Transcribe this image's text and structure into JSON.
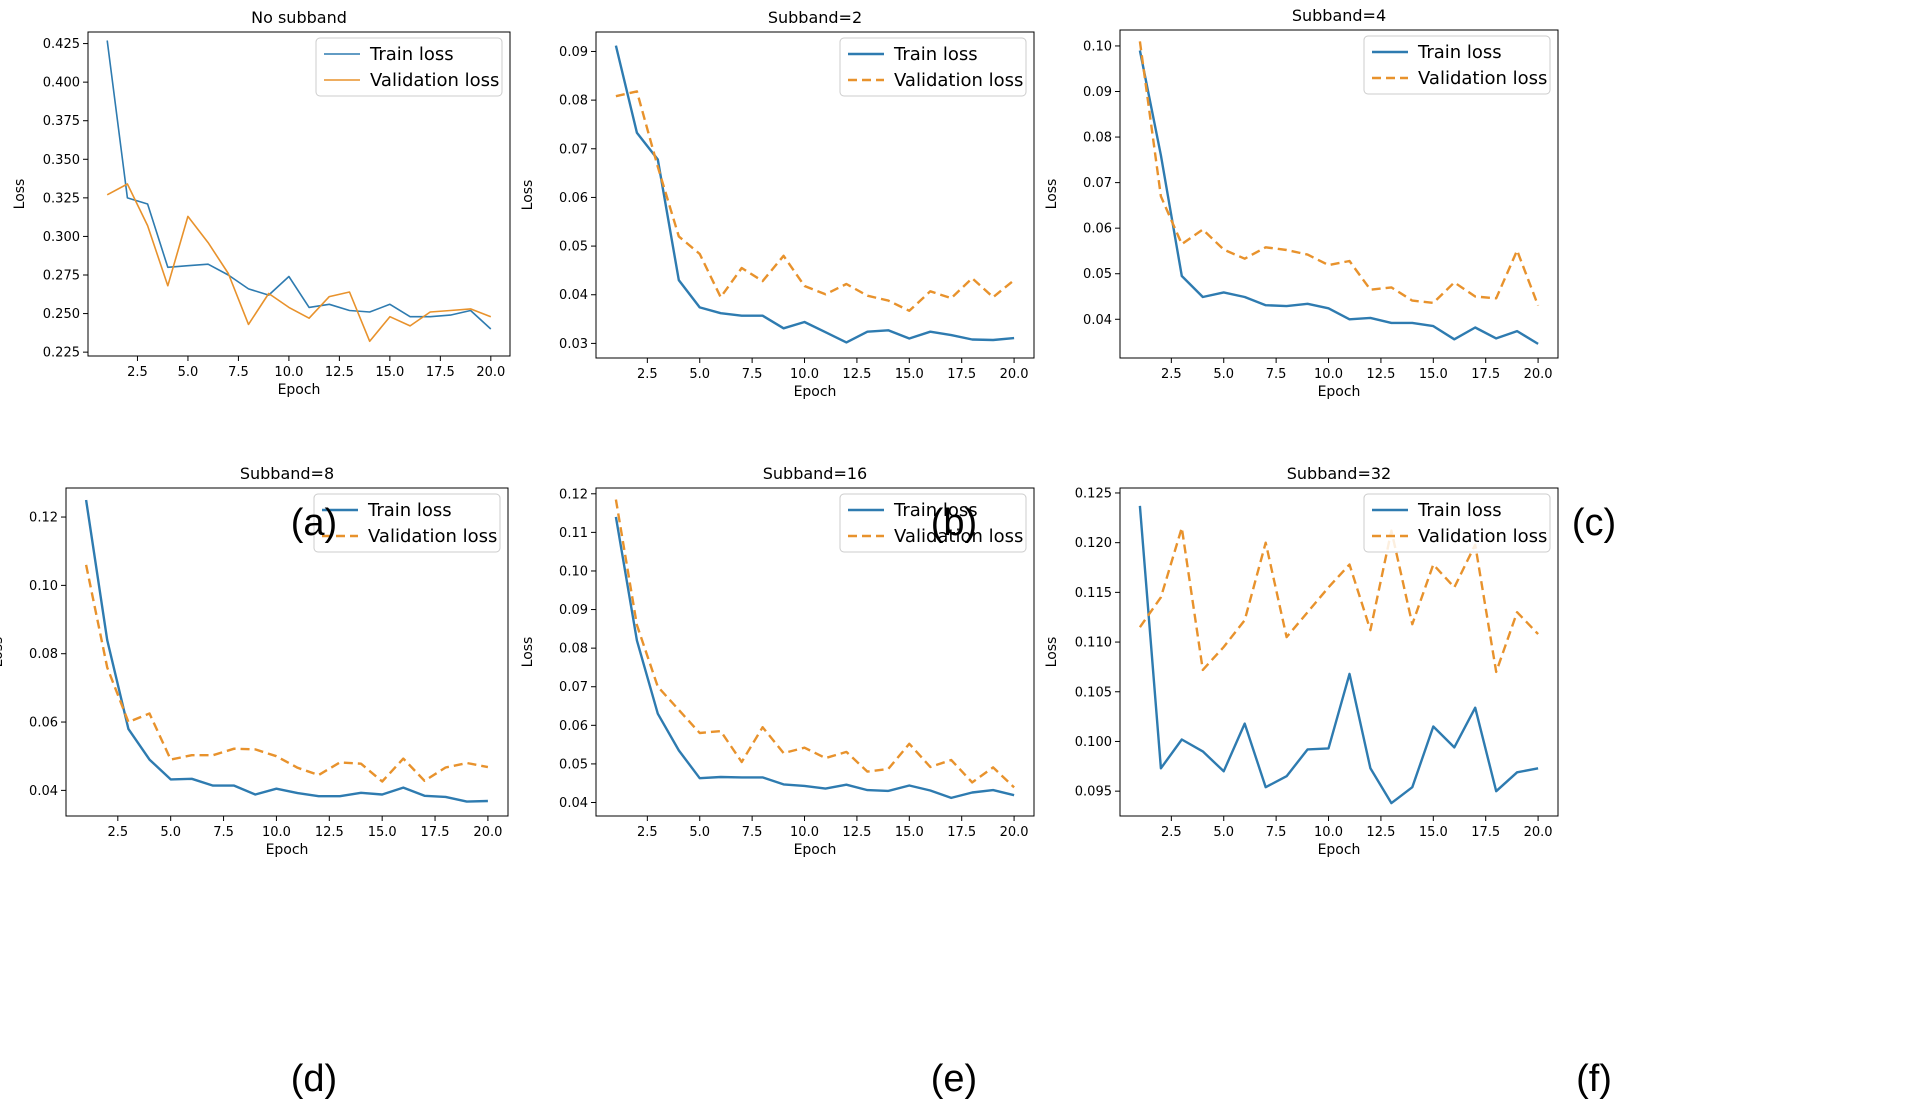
{
  "colors": {
    "train": "#2e7bb0",
    "validation": "#e8922c",
    "axis": "#000000"
  },
  "chart_data": [
    {
      "type": "line",
      "label": "(a)",
      "title": "No subband",
      "xlabel": "Epoch",
      "ylabel": "Loss",
      "xlim": [
        0.05,
        20.95
      ],
      "ylim": [
        0.2225,
        0.4325
      ],
      "xticks": [
        2.5,
        5.0,
        7.5,
        10.0,
        12.5,
        15.0,
        17.5,
        20.0
      ],
      "xtick_labels": [
        "2.5",
        "5.0",
        "7.5",
        "10.0",
        "12.5",
        "15.0",
        "17.5",
        "20.0"
      ],
      "yticks": [
        0.225,
        0.25,
        0.275,
        0.3,
        0.325,
        0.35,
        0.375,
        0.4,
        0.425
      ],
      "ytick_labels": [
        "0.225",
        "0.250",
        "0.275",
        "0.300",
        "0.325",
        "0.350",
        "0.375",
        "0.400",
        "0.425"
      ],
      "legend_position": "top-right",
      "x": [
        1,
        2,
        3,
        4,
        5,
        6,
        7,
        8,
        9,
        10,
        11,
        12,
        13,
        14,
        15,
        16,
        17,
        18,
        19,
        20
      ],
      "series": [
        {
          "name": "Train loss",
          "style": "solid",
          "lw": 1.6,
          "values": [
            0.427,
            0.325,
            0.321,
            0.28,
            0.281,
            0.282,
            0.275,
            0.266,
            0.262,
            0.274,
            0.254,
            0.256,
            0.252,
            0.251,
            0.256,
            0.248,
            0.248,
            0.249,
            0.252,
            0.24
          ]
        },
        {
          "name": "Validation loss",
          "style": "solid",
          "lw": 1.6,
          "values": [
            0.327,
            0.334,
            0.307,
            0.268,
            0.313,
            0.296,
            0.276,
            0.243,
            0.263,
            0.254,
            0.247,
            0.261,
            0.264,
            0.232,
            0.248,
            0.242,
            0.251,
            0.252,
            0.253,
            0.248
          ]
        }
      ]
    },
    {
      "type": "line",
      "label": "(b)",
      "title": "Subband=2",
      "xlabel": "Epoch",
      "ylabel": "Loss",
      "xlim": [
        0.05,
        20.95
      ],
      "ylim": [
        0.027,
        0.094
      ],
      "xticks": [
        2.5,
        5.0,
        7.5,
        10.0,
        12.5,
        15.0,
        17.5,
        20.0
      ],
      "xtick_labels": [
        "2.5",
        "5.0",
        "7.5",
        "10.0",
        "12.5",
        "15.0",
        "17.5",
        "20.0"
      ],
      "yticks": [
        0.03,
        0.04,
        0.05,
        0.06,
        0.07,
        0.08,
        0.09
      ],
      "ytick_labels": [
        "0.03",
        "0.04",
        "0.05",
        "0.06",
        "0.07",
        "0.08",
        "0.09"
      ],
      "legend_position": "top-right",
      "x": [
        1,
        2,
        3,
        4,
        5,
        6,
        7,
        8,
        9,
        10,
        11,
        12,
        13,
        14,
        15,
        16,
        17,
        18,
        19,
        20
      ],
      "series": [
        {
          "name": "Train loss",
          "style": "solid",
          "lw": 2.4,
          "values": [
            0.0912,
            0.0733,
            0.0678,
            0.043,
            0.0374,
            0.0362,
            0.0357,
            0.0357,
            0.0331,
            0.0344,
            0.0323,
            0.0302,
            0.0324,
            0.0327,
            0.031,
            0.0324,
            0.0317,
            0.0308,
            0.0307,
            0.0311
          ]
        },
        {
          "name": "Validation loss",
          "style": "dashed",
          "lw": 2.4,
          "values": [
            0.0808,
            0.0818,
            0.0663,
            0.052,
            0.0484,
            0.0395,
            0.0455,
            0.0428,
            0.048,
            0.0418,
            0.0401,
            0.0422,
            0.0398,
            0.0388,
            0.0367,
            0.0407,
            0.0393,
            0.0434,
            0.0395,
            0.043
          ]
        }
      ]
    },
    {
      "type": "line",
      "label": "(c)",
      "title": "Subband=4",
      "xlabel": "Epoch",
      "ylabel": "Loss",
      "xlim": [
        0.05,
        20.95
      ],
      "ylim": [
        0.0315,
        0.1035
      ],
      "xticks": [
        2.5,
        5.0,
        7.5,
        10.0,
        12.5,
        15.0,
        17.5,
        20.0
      ],
      "xtick_labels": [
        "2.5",
        "5.0",
        "7.5",
        "10.0",
        "12.5",
        "15.0",
        "17.5",
        "20.0"
      ],
      "yticks": [
        0.04,
        0.05,
        0.06,
        0.07,
        0.08,
        0.09,
        0.1
      ],
      "ytick_labels": [
        "0.04",
        "0.05",
        "0.06",
        "0.07",
        "0.08",
        "0.09",
        "0.10"
      ],
      "legend_position": "top-right",
      "x": [
        1,
        2,
        3,
        4,
        5,
        6,
        7,
        8,
        9,
        10,
        11,
        12,
        13,
        14,
        15,
        16,
        17,
        18,
        19,
        20
      ],
      "series": [
        {
          "name": "Train loss",
          "style": "solid",
          "lw": 2.4,
          "values": [
            0.099,
            0.076,
            0.0495,
            0.0449,
            0.0459,
            0.0449,
            0.0431,
            0.0429,
            0.0434,
            0.0424,
            0.04,
            0.0403,
            0.0392,
            0.0392,
            0.0385,
            0.0356,
            0.0382,
            0.0358,
            0.0374,
            0.0346
          ]
        },
        {
          "name": "Validation loss",
          "style": "dashed",
          "lw": 2.4,
          "values": [
            0.101,
            0.067,
            0.0565,
            0.0597,
            0.0553,
            0.0533,
            0.0558,
            0.0552,
            0.0542,
            0.0519,
            0.0528,
            0.0465,
            0.047,
            0.0441,
            0.0436,
            0.0481,
            0.045,
            0.0446,
            0.0551,
            0.043
          ]
        }
      ]
    },
    {
      "type": "line",
      "label": "(d)",
      "title": "Subband=8",
      "xlabel": "Epoch",
      "ylabel": "Loss",
      "xlim": [
        0.05,
        20.95
      ],
      "ylim": [
        0.0325,
        0.1285
      ],
      "xticks": [
        2.5,
        5.0,
        7.5,
        10.0,
        12.5,
        15.0,
        17.5,
        20.0
      ],
      "xtick_labels": [
        "2.5",
        "5.0",
        "7.5",
        "10.0",
        "12.5",
        "15.0",
        "17.5",
        "20.0"
      ],
      "yticks": [
        0.04,
        0.06,
        0.08,
        0.1,
        0.12
      ],
      "ytick_labels": [
        "0.04",
        "0.06",
        "0.08",
        "0.10",
        "0.12"
      ],
      "legend_position": "top-right",
      "x": [
        1,
        2,
        3,
        4,
        5,
        6,
        7,
        8,
        9,
        10,
        11,
        12,
        13,
        14,
        15,
        16,
        17,
        18,
        19,
        20
      ],
      "series": [
        {
          "name": "Train loss",
          "style": "solid",
          "lw": 2.4,
          "values": [
            0.125,
            0.084,
            0.058,
            0.049,
            0.0432,
            0.0434,
            0.0414,
            0.0414,
            0.0388,
            0.0405,
            0.0392,
            0.0383,
            0.0383,
            0.0393,
            0.0388,
            0.0408,
            0.0384,
            0.0381,
            0.0367,
            0.0369
          ]
        },
        {
          "name": "Validation loss",
          "style": "dashed",
          "lw": 2.4,
          "values": [
            0.106,
            0.076,
            0.06,
            0.0625,
            0.049,
            0.0503,
            0.0503,
            0.0522,
            0.052,
            0.05,
            0.0466,
            0.0445,
            0.0482,
            0.0478,
            0.0426,
            0.0493,
            0.0428,
            0.0467,
            0.048,
            0.0468
          ]
        }
      ]
    },
    {
      "type": "line",
      "label": "(e)",
      "title": "Subband=16",
      "xlabel": "Epoch",
      "ylabel": "Loss",
      "xlim": [
        0.05,
        20.95
      ],
      "ylim": [
        0.0365,
        0.1215
      ],
      "xticks": [
        2.5,
        5.0,
        7.5,
        10.0,
        12.5,
        15.0,
        17.5,
        20.0
      ],
      "xtick_labels": [
        "2.5",
        "5.0",
        "7.5",
        "10.0",
        "12.5",
        "15.0",
        "17.5",
        "20.0"
      ],
      "yticks": [
        0.04,
        0.05,
        0.06,
        0.07,
        0.08,
        0.09,
        0.1,
        0.11,
        0.12
      ],
      "ytick_labels": [
        "0.04",
        "0.05",
        "0.06",
        "0.07",
        "0.08",
        "0.09",
        "0.10",
        "0.11",
        "0.12"
      ],
      "legend_position": "top-right",
      "x": [
        1,
        2,
        3,
        4,
        5,
        6,
        7,
        8,
        9,
        10,
        11,
        12,
        13,
        14,
        15,
        16,
        17,
        18,
        19,
        20
      ],
      "series": [
        {
          "name": "Train loss",
          "style": "solid",
          "lw": 2.4,
          "values": [
            0.114,
            0.082,
            0.063,
            0.0535,
            0.0463,
            0.0466,
            0.0465,
            0.0465,
            0.0447,
            0.0443,
            0.0436,
            0.0446,
            0.0432,
            0.043,
            0.0444,
            0.0431,
            0.0412,
            0.0426,
            0.0432,
            0.0419
          ]
        },
        {
          "name": "Validation loss",
          "style": "dashed",
          "lw": 2.4,
          "values": [
            0.1185,
            0.086,
            0.07,
            0.064,
            0.058,
            0.0585,
            0.0505,
            0.0595,
            0.0528,
            0.0542,
            0.0515,
            0.0531,
            0.048,
            0.0487,
            0.0552,
            0.0492,
            0.051,
            0.0452,
            0.0491,
            0.0439
          ]
        }
      ]
    },
    {
      "type": "line",
      "label": "(f)",
      "title": "Subband=32",
      "xlabel": "Epoch",
      "ylabel": "Loss",
      "xlim": [
        0.05,
        20.95
      ],
      "ylim": [
        0.0925,
        0.1255
      ],
      "xticks": [
        2.5,
        5.0,
        7.5,
        10.0,
        12.5,
        15.0,
        17.5,
        20.0
      ],
      "xtick_labels": [
        "2.5",
        "5.0",
        "7.5",
        "10.0",
        "12.5",
        "15.0",
        "17.5",
        "20.0"
      ],
      "yticks": [
        0.095,
        0.1,
        0.105,
        0.11,
        0.115,
        0.12,
        0.125
      ],
      "ytick_labels": [
        "0.095",
        "0.100",
        "0.105",
        "0.110",
        "0.115",
        "0.120",
        "0.125"
      ],
      "legend_position": "top-right",
      "x": [
        1,
        2,
        3,
        4,
        5,
        6,
        7,
        8,
        9,
        10,
        11,
        12,
        13,
        14,
        15,
        16,
        17,
        18,
        19,
        20
      ],
      "series": [
        {
          "name": "Train loss",
          "style": "solid",
          "lw": 2.4,
          "values": [
            0.1237,
            0.0973,
            0.1002,
            0.099,
            0.097,
            0.1018,
            0.0954,
            0.0965,
            0.0992,
            0.0993,
            0.1068,
            0.0973,
            0.0938,
            0.0954,
            0.1015,
            0.0994,
            0.1034,
            0.095,
            0.0969,
            0.0973
          ]
        },
        {
          "name": "Validation loss",
          "style": "dashed",
          "lw": 2.4,
          "values": [
            0.1115,
            0.1145,
            0.1215,
            0.1072,
            0.1095,
            0.1122,
            0.12,
            0.1105,
            0.113,
            0.1155,
            0.1178,
            0.1112,
            0.1212,
            0.1118,
            0.1178,
            0.1155,
            0.1198,
            0.107,
            0.113,
            0.1108
          ]
        }
      ]
    }
  ]
}
